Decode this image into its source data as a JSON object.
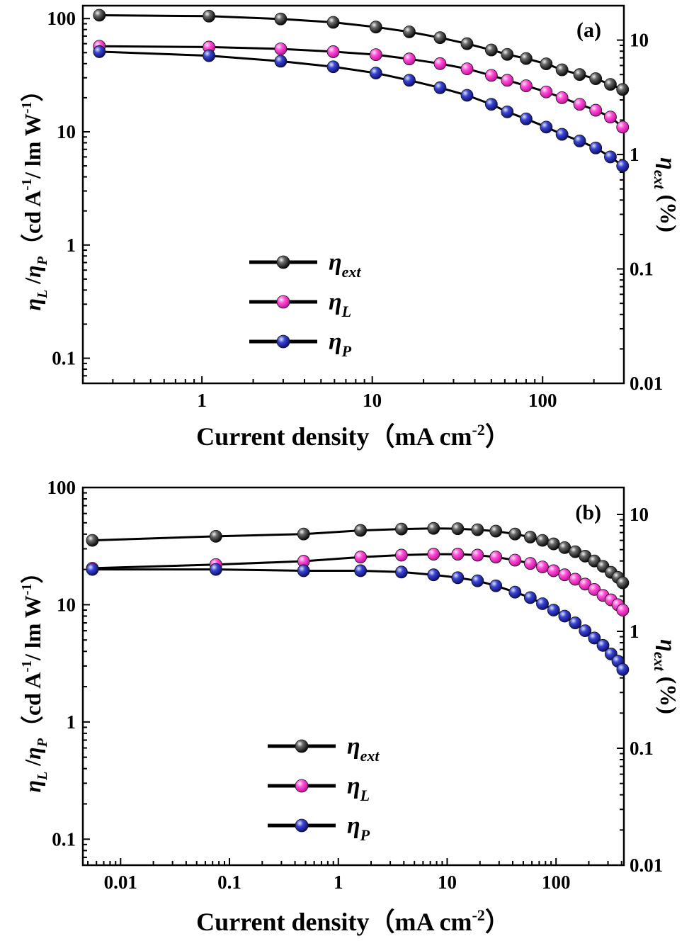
{
  "chart_data": [
    {
      "type": "line",
      "panel_label": "(a)",
      "xlabel": {
        "main": "Current density（mA cm",
        "sup": "-2",
        "end": "）"
      },
      "ylabel_left": {
        "eta": "η",
        "subL": "L",
        "slash": " /",
        "subP": "P",
        "text": "（cd A",
        "sup1": "-1",
        "mid": "/ lm W",
        "sup2": "-1",
        "end": "）"
      },
      "ylabel_right": {
        "eta": "η",
        "sub": "ext",
        "text": " (%)"
      },
      "x_scale": "log",
      "y_scale": "log",
      "xlim": [
        0.2,
        300
      ],
      "ylim_left": [
        0.06,
        130
      ],
      "ylim_right": [
        0.01,
        20
      ],
      "x_ticks": [
        1,
        10,
        100
      ],
      "x_tick_labels": [
        "1",
        "10",
        "100"
      ],
      "y_left_ticks": [
        0.1,
        1,
        10,
        100
      ],
      "y_left_tick_labels": [
        "0.1",
        "1",
        "10",
        "100"
      ],
      "y_right_ticks": [
        0.01,
        0.1,
        1,
        10
      ],
      "y_right_tick_labels": [
        "0.01",
        "0.1",
        "1",
        "10"
      ],
      "legend_position": "lower-center",
      "legend_labels": [
        {
          "eta": "η",
          "sub": "ext"
        },
        {
          "eta": "η",
          "sub": "L"
        },
        {
          "eta": "η",
          "sub": "P"
        }
      ],
      "series": [
        {
          "key": "eta_ext",
          "axis": "right",
          "color": "#2b2b2b",
          "x": [
            0.25,
            1.1,
            2.9,
            5.9,
            10.5,
            16.5,
            25,
            36,
            50,
            62,
            80,
            105,
            130,
            165,
            205,
            250,
            295
          ],
          "y": [
            16.5,
            16.2,
            15.3,
            14.3,
            13,
            11.8,
            10.5,
            9.3,
            8.2,
            7.5,
            6.9,
            6.2,
            5.5,
            5,
            4.6,
            4.1,
            3.7
          ]
        },
        {
          "key": "eta_L",
          "axis": "left",
          "color": "#ff3fd2",
          "x": [
            0.25,
            1.1,
            2.9,
            5.9,
            10.5,
            16.5,
            25,
            36,
            50,
            62,
            80,
            105,
            130,
            165,
            205,
            250,
            295
          ],
          "y": [
            57,
            56,
            54,
            51,
            48,
            44,
            40,
            36,
            31.5,
            28.5,
            25.5,
            22.5,
            20,
            17.5,
            15.5,
            13.5,
            11
          ]
        },
        {
          "key": "eta_P",
          "axis": "left",
          "color": "#2a2fb0",
          "x": [
            0.25,
            1.1,
            2.9,
            5.9,
            10.5,
            16.5,
            25,
            36,
            50,
            62,
            80,
            105,
            130,
            165,
            205,
            250,
            295
          ],
          "y": [
            51,
            47,
            42,
            37.5,
            33,
            28.5,
            24.5,
            21,
            17.5,
            15,
            13,
            11,
            9.5,
            8.3,
            7.2,
            6,
            5
          ]
        }
      ]
    },
    {
      "type": "line",
      "panel_label": "(b)",
      "xlabel": {
        "main": "Current density（mA cm",
        "sup": "-2",
        "end": "）"
      },
      "ylabel_left": {
        "eta": "η",
        "subL": "L",
        "slash": " /",
        "subP": "P",
        "text": "（cd A",
        "sup1": "-1",
        "mid": "/ lm W",
        "sup2": "-1",
        "end": "）"
      },
      "ylabel_right": {
        "eta": "η",
        "sub": "ext",
        "text": " (%)"
      },
      "x_scale": "log",
      "y_scale": "log",
      "xlim": [
        0.0045,
        420
      ],
      "ylim_left": [
        0.06,
        100
      ],
      "ylim_right": [
        0.01,
        17
      ],
      "x_ticks": [
        0.01,
        0.1,
        1,
        10,
        100
      ],
      "x_tick_labels": [
        "0.01",
        "0.1",
        "1",
        "10",
        "100"
      ],
      "y_left_ticks": [
        0.1,
        1,
        10,
        100
      ],
      "y_left_tick_labels": [
        "0.1",
        "1",
        "10",
        "100"
      ],
      "y_right_ticks": [
        0.01,
        0.1,
        1,
        10
      ],
      "y_right_tick_labels": [
        "0.01",
        "0.1",
        "1",
        "10"
      ],
      "legend_position": "lower-center",
      "legend_labels": [
        {
          "eta": "η",
          "sub": "ext"
        },
        {
          "eta": "η",
          "sub": "L"
        },
        {
          "eta": "η",
          "sub": "P"
        }
      ],
      "series": [
        {
          "key": "eta_ext",
          "axis": "right",
          "color": "#2b2b2b",
          "x": [
            0.0055,
            0.075,
            0.48,
            1.6,
            3.8,
            7.5,
            12.5,
            19,
            28,
            42,
            58,
            75,
            95,
            120,
            150,
            185,
            225,
            270,
            320,
            370,
            410
          ],
          "y": [
            6,
            6.5,
            6.8,
            7.3,
            7.5,
            7.6,
            7.55,
            7.4,
            7.2,
            6.8,
            6.4,
            6,
            5.6,
            5.2,
            4.8,
            4.4,
            4,
            3.6,
            3.2,
            2.9,
            2.6
          ]
        },
        {
          "key": "eta_L",
          "axis": "left",
          "color": "#ff3fd2",
          "x": [
            0.0055,
            0.075,
            0.48,
            1.6,
            3.8,
            7.5,
            12.5,
            19,
            28,
            42,
            58,
            75,
            95,
            120,
            150,
            185,
            225,
            270,
            320,
            370,
            410
          ],
          "y": [
            20.5,
            22,
            23.5,
            25.5,
            26.5,
            27,
            27,
            26.5,
            25.5,
            24,
            22.5,
            21,
            19.5,
            18,
            16.5,
            15,
            13.5,
            12,
            11,
            10,
            9
          ]
        },
        {
          "key": "eta_P",
          "axis": "left",
          "color": "#2a2fb0",
          "x": [
            0.0055,
            0.075,
            0.48,
            1.6,
            3.8,
            7.5,
            12.5,
            19,
            28,
            42,
            58,
            75,
            95,
            120,
            150,
            185,
            225,
            270,
            320,
            370,
            410
          ],
          "y": [
            20,
            20,
            19.5,
            19.5,
            19,
            18,
            17,
            16,
            14.5,
            12.8,
            11.5,
            10.2,
            9,
            8,
            7,
            6,
            5.2,
            4.5,
            3.8,
            3.3,
            2.8
          ]
        }
      ]
    }
  ]
}
